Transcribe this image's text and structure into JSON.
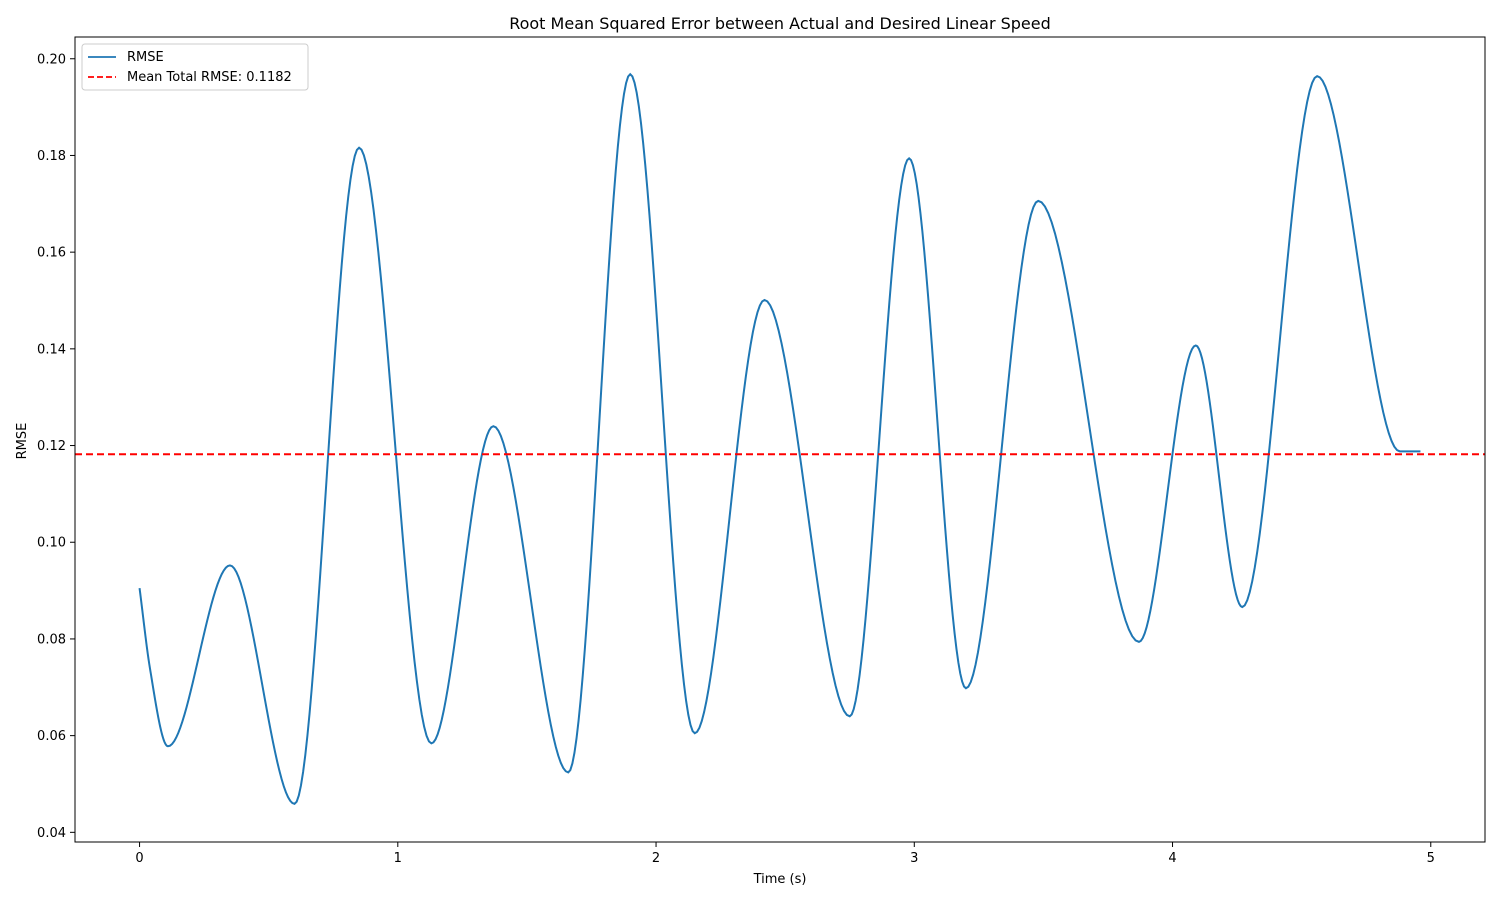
{
  "chart_data": {
    "type": "line",
    "title": "Root Mean Squared Error between Actual and Desired Linear Speed",
    "xlabel": "Time (s)",
    "ylabel": "RMSE",
    "xlim": [
      -0.25,
      5.21
    ],
    "ylim": [
      0.038,
      0.2045
    ],
    "xticks": [
      0,
      1,
      2,
      3,
      4,
      5
    ],
    "xtick_labels": [
      "0",
      "1",
      "2",
      "3",
      "4",
      "5"
    ],
    "yticks": [
      0.04,
      0.06,
      0.08,
      0.1,
      0.12,
      0.14,
      0.16,
      0.18,
      0.2
    ],
    "ytick_labels": [
      "0.04",
      "0.06",
      "0.08",
      "0.10",
      "0.12",
      "0.14",
      "0.16",
      "0.18",
      "0.20"
    ],
    "grid": false,
    "legend_position": "upper-left",
    "series": [
      {
        "name": "RMSE",
        "color": "#1f77b4",
        "style": "solid",
        "x": [
          0.0,
          0.04,
          0.11,
          0.35,
          0.6,
          0.85,
          1.13,
          1.37,
          1.66,
          1.9,
          2.15,
          2.42,
          2.75,
          2.98,
          3.2,
          3.48,
          3.87,
          4.09,
          4.27,
          4.56,
          4.88,
          4.96
        ],
        "y": [
          0.0905,
          0.074,
          0.0578,
          0.0952,
          0.0459,
          0.1816,
          0.0584,
          0.124,
          0.0524,
          0.1968,
          0.0605,
          0.1501,
          0.064,
          0.1794,
          0.0698,
          0.1706,
          0.0794,
          0.1407,
          0.0866,
          0.1964,
          0.1188,
          0.1188
        ]
      },
      {
        "name": "Mean Total RMSE: 0.1182",
        "color": "#ff0000",
        "style": "dashed",
        "hline": 0.1182
      }
    ]
  }
}
